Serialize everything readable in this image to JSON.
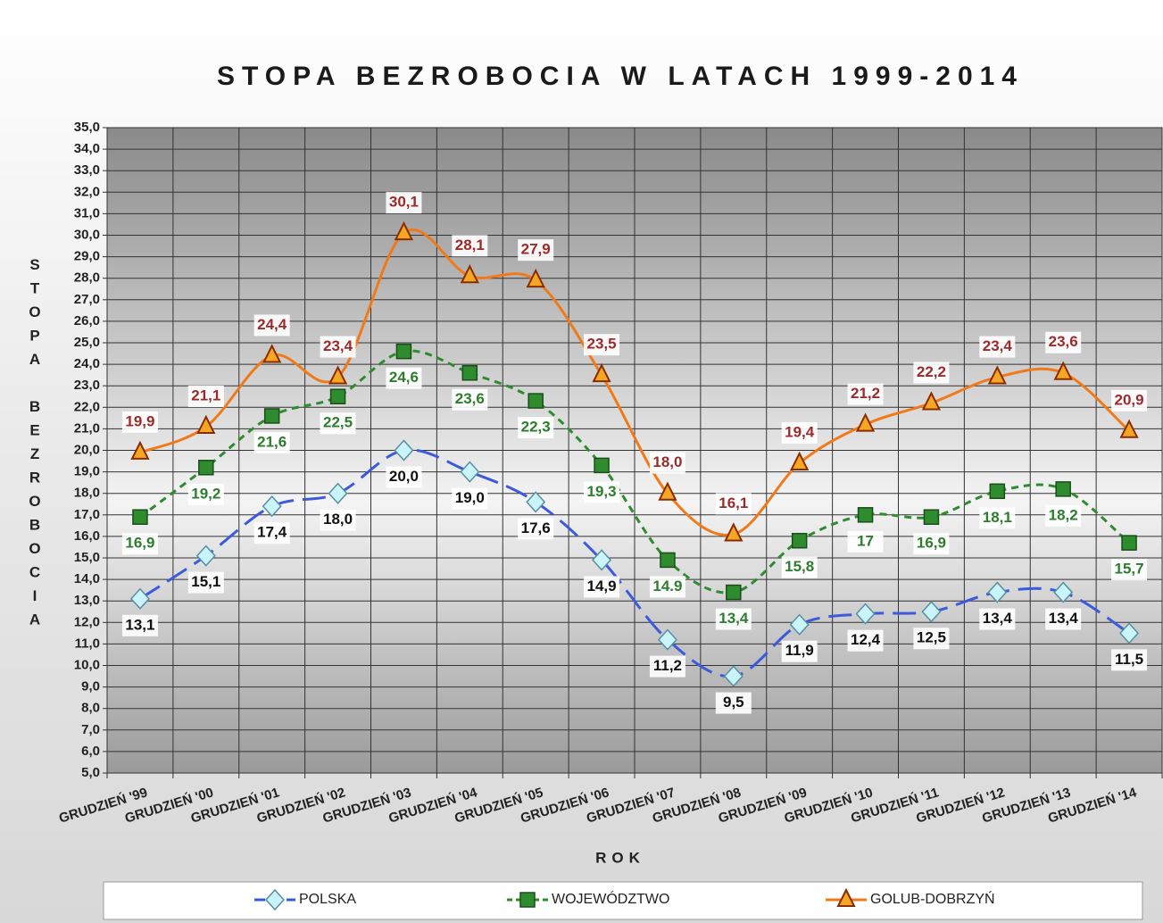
{
  "chart_data": {
    "type": "line",
    "title": "STOPA BEZROBOCIA W LATACH 1999-2014",
    "xlabel": "ROK",
    "ylabel": "STOPA BEZROBOCIA",
    "categories": [
      "GRUDZIEŃ '99",
      "GRUDZIEŃ '00",
      "GRUDZIEŃ '01",
      "GRUDZIEŃ '02",
      "GRUDZIEŃ '03",
      "GRUDZIEŃ '04",
      "GRUDZIEŃ '05",
      "GRUDZIEŃ '06",
      "GRUDZIEŃ '07",
      "GRUDZIEŃ '08",
      "GRUDZIEŃ '09",
      "GRUDZIEŃ '10",
      "GRUDZIEŃ '11",
      "GRUDZIEŃ '12",
      "GRUDZIEŃ '13",
      "GRUDZIEŃ '14"
    ],
    "series": [
      {
        "name": "POLSKA",
        "color": "#3b5bdb",
        "values": [
          13.1,
          15.1,
          17.4,
          18.0,
          20.0,
          19.0,
          17.6,
          14.9,
          11.2,
          9.5,
          11.9,
          12.4,
          12.5,
          13.4,
          13.4,
          11.5
        ],
        "value_labels": [
          "13,1",
          "15,1",
          "17,4",
          "18,0",
          "20,0",
          "19,0",
          "17,6",
          "14,9",
          "11,2",
          "9,5",
          "11,9",
          "12,4",
          "12,5",
          "13,4",
          "13,4",
          "11,5"
        ]
      },
      {
        "name": "WOJEWÓDZTWO",
        "color": "#2e8b2e",
        "values": [
          16.9,
          19.2,
          21.6,
          22.5,
          24.6,
          23.6,
          22.3,
          19.3,
          14.9,
          13.4,
          15.8,
          17,
          16.9,
          18.1,
          18.2,
          15.7
        ],
        "value_labels": [
          "16,9",
          "19,2",
          "21,6",
          "22,5",
          "24,6",
          "23,6",
          "22,3",
          "19,3",
          "14.9",
          "13,4",
          "15,8",
          "17",
          "16,9",
          "18,1",
          "18,2",
          "15,7"
        ]
      },
      {
        "name": "GOLUB-DOBRZYŃ",
        "color": "#f07a1a",
        "values": [
          19.9,
          21.1,
          24.4,
          23.4,
          30.1,
          28.1,
          27.9,
          23.5,
          18.0,
          16.1,
          19.4,
          21.2,
          22.2,
          23.4,
          23.6,
          20.9
        ],
        "value_labels": [
          "19,9",
          "21,1",
          "24,4",
          "23,4",
          "30,1",
          "28,1",
          "27,9",
          "23,5",
          "18,0",
          "16,1",
          "19,4",
          "21,2",
          "22,2",
          "23,4",
          "23,6",
          "20,9"
        ]
      }
    ],
    "ylim": [
      5,
      35
    ],
    "yticks": [
      {
        "value": 5,
        "label": "5,0"
      },
      {
        "value": 6,
        "label": "6,0"
      },
      {
        "value": 7,
        "label": "7,0"
      },
      {
        "value": 8,
        "label": "8,0"
      },
      {
        "value": 9,
        "label": "9,0"
      },
      {
        "value": 10,
        "label": "10,0"
      },
      {
        "value": 11,
        "label": "11,0"
      },
      {
        "value": 12,
        "label": "12,0"
      },
      {
        "value": 13,
        "label": "13,0"
      },
      {
        "value": 14,
        "label": "14,0"
      },
      {
        "value": 15,
        "label": "15,0"
      },
      {
        "value": 16,
        "label": "16,0"
      },
      {
        "value": 17,
        "label": "17,0"
      },
      {
        "value": 18,
        "label": "18,0"
      },
      {
        "value": 19,
        "label": "19,0"
      },
      {
        "value": 20,
        "label": "20,0"
      },
      {
        "value": 21,
        "label": "21,0"
      },
      {
        "value": 22,
        "label": "22,0"
      },
      {
        "value": 23,
        "label": "23,0"
      },
      {
        "value": 24,
        "label": "24,0"
      },
      {
        "value": 25,
        "label": "25,0"
      },
      {
        "value": 26,
        "label": "26,0"
      },
      {
        "value": 27,
        "label": "27,0"
      },
      {
        "value": 28,
        "label": "28,0"
      },
      {
        "value": 29,
        "label": "29,0"
      },
      {
        "value": 30,
        "label": "30,0"
      },
      {
        "value": 31,
        "label": "31,0"
      },
      {
        "value": 32,
        "label": "32,0"
      },
      {
        "value": 33,
        "label": "33,0"
      },
      {
        "value": 34,
        "label": "34,0"
      },
      {
        "value": 35,
        "label": "35,0"
      }
    ],
    "grid": true,
    "legend": "bottom"
  }
}
